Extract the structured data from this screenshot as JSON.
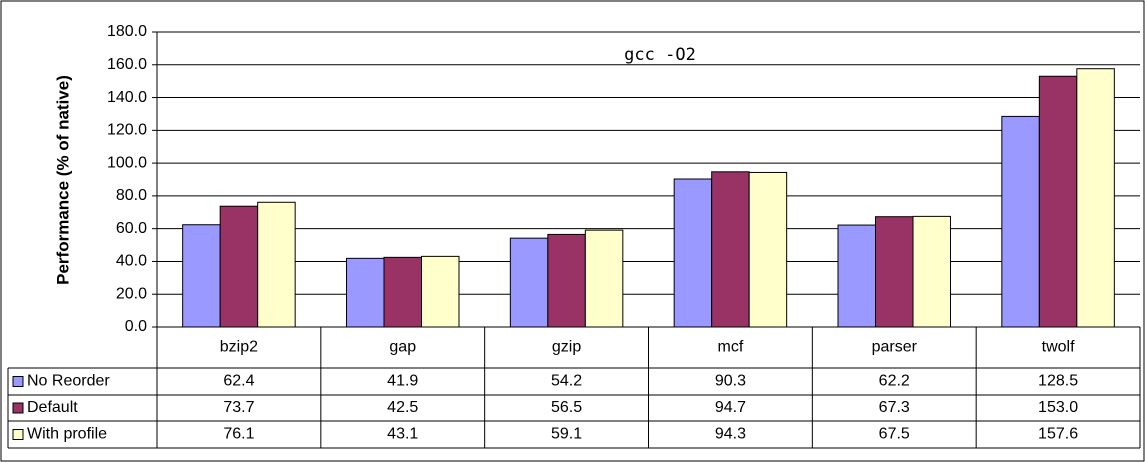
{
  "chart_data": {
    "type": "bar",
    "title": "gcc -O2",
    "y_label": "Performance (% of native)",
    "categories": [
      "bzip2",
      "gap",
      "gzip",
      "mcf",
      "parser",
      "twolf"
    ],
    "series": [
      {
        "name": "No Reorder",
        "color": "#9999ff",
        "values": [
          62.4,
          41.9,
          54.2,
          90.3,
          62.2,
          128.5
        ],
        "value_labels": [
          "62.4",
          "41.9",
          "54.2",
          "90.3",
          "62.2",
          "128.5"
        ]
      },
      {
        "name": "Default",
        "color": "#993366",
        "values": [
          73.7,
          42.5,
          56.5,
          94.7,
          67.3,
          153
        ],
        "value_labels": [
          "73.7",
          "42.5",
          "56.5",
          "94.7",
          "67.3",
          "153.0"
        ]
      },
      {
        "name": "With profile",
        "color": "#ffffcc",
        "values": [
          76.1,
          43.1,
          59.1,
          94.3,
          67.5,
          157.6
        ],
        "value_labels": [
          "76.1",
          "43.1",
          "59.1",
          "94.3",
          "67.5",
          "157.6"
        ]
      }
    ],
    "ylim": [
      0,
      180
    ],
    "yticks": [
      {
        "value": 0,
        "label": "0.0"
      },
      {
        "value": 20,
        "label": "20.0"
      },
      {
        "value": 40,
        "label": "40.0"
      },
      {
        "value": 60,
        "label": "60.0"
      },
      {
        "value": 80,
        "label": "80.0"
      },
      {
        "value": 100,
        "label": "100.0"
      },
      {
        "value": 120,
        "label": "120.0"
      },
      {
        "value": 140,
        "label": "140.0"
      },
      {
        "value": 160,
        "label": "160.0"
      },
      {
        "value": 180,
        "label": "180.0"
      }
    ],
    "grid": true
  }
}
